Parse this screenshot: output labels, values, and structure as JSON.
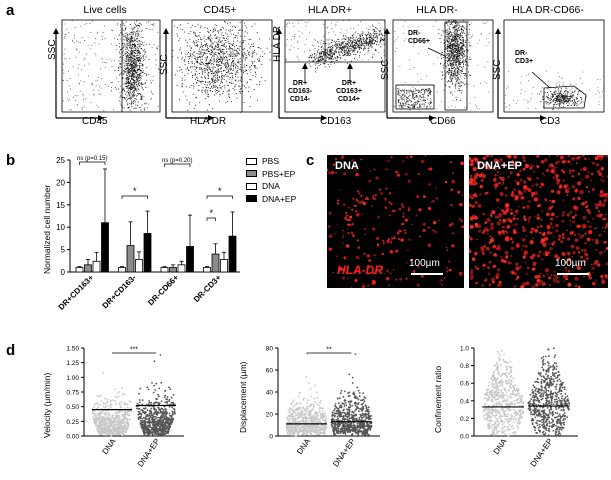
{
  "panel_labels": {
    "a": "a",
    "b": "b",
    "c": "c",
    "d": "d"
  },
  "panel_a": {
    "plots": [
      {
        "title": "Live cells",
        "xlabel": "CD45",
        "ylabel": "SSC"
      },
      {
        "title": "CD45+",
        "xlabel": "HLA DR",
        "ylabel": "SSC"
      },
      {
        "title": "HLA DR+",
        "xlabel": "CD163",
        "ylabel": "HLA DR"
      },
      {
        "title": "HLA DR-",
        "xlabel": "CD66",
        "ylabel": "SSC"
      },
      {
        "title": "HLA DR-CD66-",
        "xlabel": "CD3",
        "ylabel": "SSC"
      }
    ],
    "annotations": {
      "dr_cd163_neg": [
        "DR+",
        "CD163-",
        "CD14-"
      ],
      "dr_cd163_pos": [
        "DR+",
        "CD163+",
        "CD14+"
      ],
      "dr_cd66": [
        "DR-",
        "CD66+"
      ],
      "dr_cd3": [
        "DR-",
        "CD3+"
      ]
    }
  },
  "chart_data": [
    {
      "type": "bar",
      "panel": "b",
      "ylabel": "Normalized cell number",
      "ylim": [
        0,
        25
      ],
      "yticks": [
        0,
        5,
        10,
        15,
        20,
        25
      ],
      "categories": [
        "DR+CD163+",
        "DR+CD163-",
        "DR-CD66+",
        "DR-CD3+"
      ],
      "series": [
        {
          "name": "PBS",
          "values": [
            1.0,
            1.0,
            1.0,
            1.0
          ],
          "errors": [
            0.2,
            0.2,
            0.2,
            0.2
          ]
        },
        {
          "name": "PBS+EP",
          "values": [
            1.6,
            5.9,
            1.0,
            4.0
          ],
          "errors": [
            1.2,
            5.3,
            0.6,
            2.3
          ]
        },
        {
          "name": "DNA",
          "values": [
            2.4,
            2.8,
            1.6,
            2.8
          ],
          "errors": [
            2.0,
            1.7,
            0.8,
            1.6
          ]
        },
        {
          "name": "DNA+EP",
          "values": [
            11.0,
            8.6,
            5.7,
            8.0
          ],
          "errors": [
            12.0,
            5.0,
            7.0,
            5.4
          ]
        }
      ],
      "colors": {
        "PBS": "#ffffff",
        "PBS+EP": "#8c8c8c",
        "DNA": "#ffffff",
        "DNA+EP": "#000000"
      },
      "annotations": [
        "ns (p=0.15)",
        "*",
        "ns (p=0.20)",
        "*",
        "*"
      ],
      "legend_position": "top-right"
    },
    {
      "type": "scatter",
      "panel": "d",
      "ylabel": "Velocity (µm/min)",
      "categories": [
        "DNA",
        "DNA+EP"
      ],
      "ylim": [
        0,
        1.5
      ],
      "yticks": [
        "0.00",
        "0.25",
        "0.50",
        "0.75",
        "1.00",
        "1.25",
        "1.50"
      ],
      "medians": [
        0.45,
        0.52
      ],
      "annotation": "***"
    },
    {
      "type": "scatter",
      "panel": "d",
      "ylabel": "Displacement (µm)",
      "categories": [
        "DNA",
        "DNA+EP"
      ],
      "ylim": [
        0,
        80
      ],
      "yticks": [
        "0",
        "20",
        "40",
        "60",
        "80"
      ],
      "medians": [
        11,
        13
      ],
      "annotation": "**"
    },
    {
      "type": "scatter",
      "panel": "d",
      "ylabel": "Confinement ratio",
      "categories": [
        "DNA",
        "DNA+EP"
      ],
      "ylim": [
        0,
        1.0
      ],
      "yticks": [
        "0.0",
        "0.2",
        "0.4",
        "0.6",
        "0.8",
        "1.0"
      ],
      "medians": [
        0.33,
        0.34
      ],
      "annotation": ""
    }
  ],
  "panel_c": {
    "images": [
      {
        "label": "DNA",
        "stain": "HLA-DR",
        "scalebar": "100µm"
      },
      {
        "label": "DNA+EP",
        "scalebar": "100µm"
      }
    ]
  }
}
